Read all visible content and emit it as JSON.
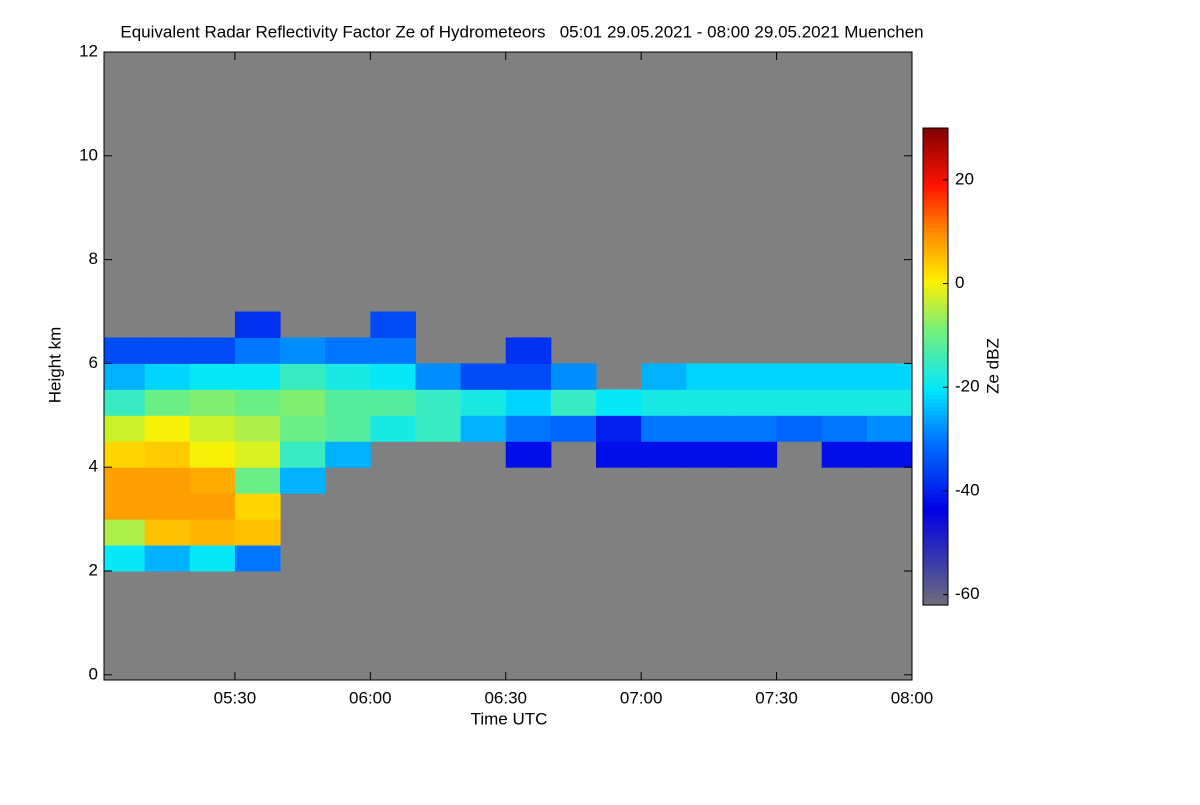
{
  "chart_data": {
    "type": "heatmap",
    "title": "Equivalent Radar Reflectivity Factor Ze of Hydrometeors   05:01 29.05.2021 - 08:00 29.05.2021 Muenchen",
    "x_label": "Time UTC",
    "y_label": "Height km",
    "colorbar_label": "Ze dBZ",
    "x_bins": [
      1,
      10,
      20,
      30,
      40,
      50,
      60,
      70,
      80,
      90,
      100,
      110,
      120,
      130,
      140,
      150,
      160,
      170,
      180
    ],
    "y_bins": [
      2.0,
      2.5,
      3.0,
      3.5,
      4.0,
      4.5,
      5.0,
      5.5,
      6.0,
      6.5,
      7.0
    ],
    "z": [
      [
        -20,
        -25,
        -20,
        -30,
        null,
        null,
        null,
        null,
        null,
        null,
        null,
        null,
        null,
        null,
        null,
        null,
        null,
        null
      ],
      [
        -5,
        5,
        6,
        5,
        null,
        null,
        null,
        null,
        null,
        null,
        null,
        null,
        null,
        null,
        null,
        null,
        null,
        null
      ],
      [
        8,
        8,
        8,
        3,
        null,
        null,
        null,
        null,
        null,
        null,
        null,
        null,
        null,
        null,
        null,
        null,
        null,
        null
      ],
      [
        8,
        8,
        7,
        -10,
        -25,
        null,
        null,
        null,
        null,
        null,
        null,
        null,
        null,
        null,
        null,
        null,
        null,
        null
      ],
      [
        3,
        4,
        0,
        -2,
        -15,
        -25,
        null,
        null,
        null,
        -42,
        null,
        -42,
        -42,
        -42,
        -42,
        null,
        -42,
        -42
      ],
      [
        -3,
        0,
        -3,
        -5,
        -10,
        -12,
        -18,
        -15,
        -25,
        -30,
        -32,
        -40,
        -30,
        -30,
        -30,
        -32,
        -30,
        -28
      ],
      [
        -15,
        -10,
        -8,
        -10,
        -8,
        -12,
        -12,
        -15,
        -18,
        -22,
        -15,
        -20,
        -18,
        -18,
        -18,
        -18,
        -18,
        -18
      ],
      [
        -25,
        -22,
        -20,
        -20,
        -15,
        -18,
        -20,
        -28,
        -35,
        -35,
        -28,
        null,
        -25,
        -22,
        -22,
        -22,
        -22,
        -22
      ],
      [
        -35,
        -35,
        -35,
        -30,
        -28,
        -30,
        -30,
        null,
        null,
        -38,
        null,
        null,
        null,
        null,
        null,
        null,
        null,
        null
      ],
      [
        null,
        null,
        null,
        -38,
        null,
        null,
        -35,
        null,
        null,
        null,
        null,
        null,
        null,
        null,
        null,
        null,
        null,
        null
      ]
    ],
    "xlim": [
      1,
      180
    ],
    "xticks": [
      {
        "value": 30,
        "label": "05:30"
      },
      {
        "value": 60,
        "label": "06:00"
      },
      {
        "value": 90,
        "label": "06:30"
      },
      {
        "value": 120,
        "label": "07:00"
      },
      {
        "value": 150,
        "label": "07:30"
      },
      {
        "value": 180,
        "label": "08:00"
      }
    ],
    "ylim": [
      -0.1,
      12
    ],
    "yticks": [
      0,
      2,
      4,
      6,
      8,
      10,
      12
    ],
    "clim": [
      -62,
      30
    ],
    "cticks": [
      -60,
      -40,
      -20,
      0,
      20
    ],
    "background_color": "#808080"
  }
}
